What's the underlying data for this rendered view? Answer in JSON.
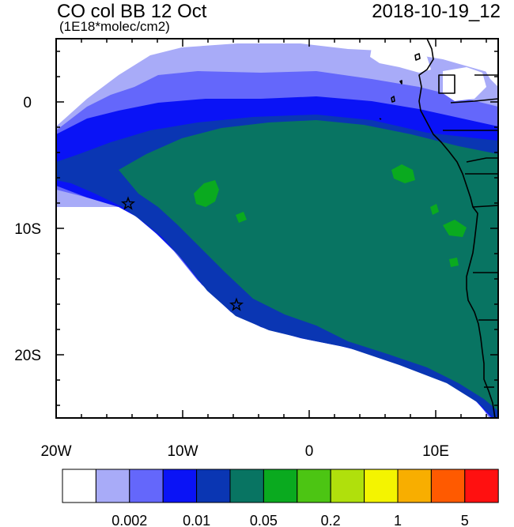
{
  "header": {
    "title": "CO col BB 12 Oct",
    "units": "(1E18*molec/cm2)",
    "datetime": "2018-10-19_12"
  },
  "map": {
    "lon_range": [
      -20,
      15
    ],
    "lat_range": [
      -25,
      5
    ],
    "lon_tick_labels": [
      "20W",
      "10W",
      "0",
      "10E"
    ],
    "lat_tick_labels": [
      "0",
      "10S",
      "20S"
    ],
    "markers": [
      {
        "name": "star-marker",
        "lon": -14.3,
        "lat": -8.0
      },
      {
        "name": "star-marker",
        "lon": -5.8,
        "lat": -16.0
      }
    ]
  },
  "colorbar": {
    "colors": [
      "#ffffff",
      "#a8abf8",
      "#6467fb",
      "#0a13f6",
      "#0a36b3",
      "#087462",
      "#0aaa1f",
      "#4cc513",
      "#b0e00c",
      "#f4f400",
      "#f8ae00",
      "#ff5a00",
      "#ff1010"
    ],
    "labels": [
      "0.002",
      "0.01",
      "0.05",
      "0.2",
      "1",
      "5"
    ]
  }
}
